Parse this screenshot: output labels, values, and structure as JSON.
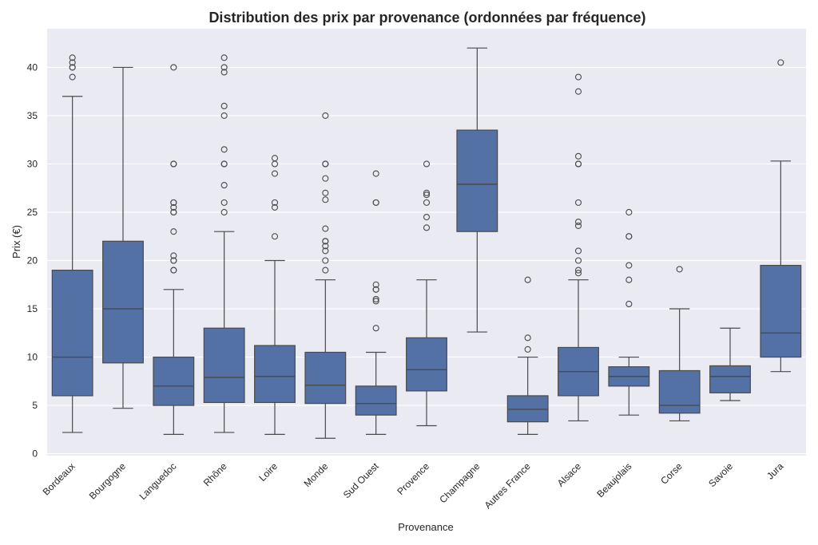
{
  "chart_data": {
    "type": "box",
    "title": "Distribution des prix par provenance (ordonnées par fréquence)",
    "xlabel": "Provenance",
    "ylabel": "Prix (€)",
    "ylim": [
      -0.2,
      44
    ],
    "yticks": [
      0,
      5,
      10,
      15,
      20,
      25,
      30,
      35,
      40
    ],
    "grid": true,
    "colors": {
      "box": "#5471a6",
      "line": "#4a4a4a",
      "background": "#eaeaf2",
      "grid": "#ffffff"
    },
    "categories": [
      "Bordeaux",
      "Bourgogne",
      "Languedoc",
      "Rhône",
      "Loire",
      "Monde",
      "Sud Ouest",
      "Provence",
      "Champagne",
      "Autres France",
      "Alsace",
      "Beaujolais",
      "Corse",
      "Savoie",
      "Jura"
    ],
    "boxes": [
      {
        "category": "Bordeaux",
        "whisker_low": 2.2,
        "q1": 6,
        "median": 10,
        "q3": 19,
        "whisker_high": 37,
        "outliers": [
          39,
          40,
          40,
          40.5,
          41
        ]
      },
      {
        "category": "Bourgogne",
        "whisker_low": 4.7,
        "q1": 9.4,
        "median": 15,
        "q3": 22,
        "whisker_high": 40,
        "outliers": []
      },
      {
        "category": "Languedoc",
        "whisker_low": 2,
        "q1": 5,
        "median": 7,
        "q3": 10,
        "whisker_high": 17,
        "outliers": [
          19,
          19,
          20,
          20,
          20.5,
          23,
          25,
          25,
          25.5,
          26,
          26,
          30,
          30,
          40
        ]
      },
      {
        "category": "Rhône",
        "whisker_low": 2.2,
        "q1": 5.3,
        "median": 7.9,
        "q3": 13,
        "whisker_high": 23,
        "outliers": [
          25,
          26,
          27.8,
          30,
          30,
          31.5,
          35,
          36,
          39.5,
          40,
          41
        ]
      },
      {
        "category": "Loire",
        "whisker_low": 2,
        "q1": 5.3,
        "median": 8,
        "q3": 11.2,
        "whisker_high": 20,
        "outliers": [
          22.5,
          25.5,
          26,
          29,
          30,
          30.6
        ]
      },
      {
        "category": "Monde",
        "whisker_low": 1.6,
        "q1": 5.2,
        "median": 7.1,
        "q3": 10.5,
        "whisker_high": 18,
        "outliers": [
          19,
          20,
          21,
          21.5,
          22,
          22,
          23.3,
          26.3,
          27,
          28.5,
          30,
          30,
          35
        ]
      },
      {
        "category": "Sud Ouest",
        "whisker_low": 2,
        "q1": 4,
        "median": 5.2,
        "q3": 7,
        "whisker_high": 10.5,
        "outliers": [
          13,
          15.8,
          16,
          17,
          17,
          17.5,
          26,
          26,
          29
        ]
      },
      {
        "category": "Provence",
        "whisker_low": 2.9,
        "q1": 6.5,
        "median": 8.7,
        "q3": 12,
        "whisker_high": 18,
        "outliers": [
          23.4,
          24.5,
          26,
          26.8,
          27,
          30
        ]
      },
      {
        "category": "Champagne",
        "whisker_low": 12.6,
        "q1": 23,
        "median": 27.9,
        "q3": 33.5,
        "whisker_high": 42,
        "outliers": []
      },
      {
        "category": "Autres France",
        "whisker_low": 2,
        "q1": 3.3,
        "median": 4.6,
        "q3": 6,
        "whisker_high": 10,
        "outliers": [
          10.8,
          12,
          18
        ]
      },
      {
        "category": "Alsace",
        "whisker_low": 3.4,
        "q1": 6,
        "median": 8.5,
        "q3": 11,
        "whisker_high": 18,
        "outliers": [
          18.7,
          19,
          20,
          21,
          23.6,
          24,
          26,
          30,
          30,
          30.8,
          37.5,
          39
        ]
      },
      {
        "category": "Beaujolais",
        "whisker_low": 4,
        "q1": 7,
        "median": 8,
        "q3": 9,
        "whisker_high": 10,
        "outliers": [
          15.5,
          18,
          19.5,
          22.5,
          22.5,
          25
        ]
      },
      {
        "category": "Corse",
        "whisker_low": 3.4,
        "q1": 4.2,
        "median": 5,
        "q3": 8.6,
        "whisker_high": 15,
        "outliers": [
          19.1
        ]
      },
      {
        "category": "Savoie",
        "whisker_low": 5.5,
        "q1": 6.3,
        "median": 8,
        "q3": 9.1,
        "whisker_high": 13,
        "outliers": []
      },
      {
        "category": "Jura",
        "whisker_low": 8.5,
        "q1": 10,
        "median": 12.5,
        "q3": 19.5,
        "whisker_high": 30.3,
        "outliers": [
          40.5
        ]
      }
    ]
  }
}
